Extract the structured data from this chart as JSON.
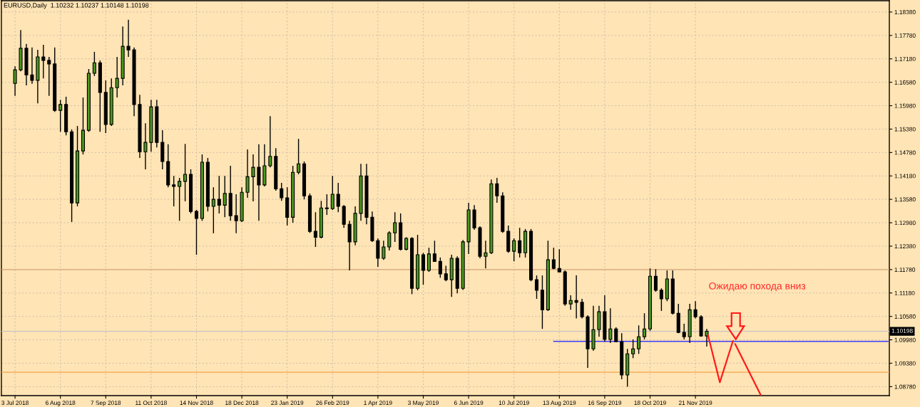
{
  "chart_data": {
    "type": "candlestick",
    "title": "EURUSD,Daily  1.10232 1.10237 1.10148 1.10198",
    "annotations": [
      "Ожидаю похода вниз"
    ],
    "categories": [
      "3 Jul 2018",
      null,
      null,
      null,
      null,
      null,
      null,
      null,
      "6 Aug 2018",
      null,
      null,
      null,
      null,
      null,
      null,
      null,
      "7 Sep 2018",
      null,
      null,
      null,
      null,
      null,
      null,
      null,
      "11 Oct 2018",
      null,
      null,
      null,
      null,
      null,
      null,
      null,
      "14 Nov 2018",
      null,
      null,
      null,
      null,
      null,
      null,
      null,
      "18 Dec 2018",
      null,
      null,
      null,
      null,
      null,
      null,
      null,
      "23 Jan 2019",
      null,
      null,
      null,
      null,
      null,
      null,
      null,
      "26 Feb 2019",
      null,
      null,
      null,
      null,
      null,
      null,
      null,
      "1 Apr 2019",
      null,
      null,
      null,
      null,
      null,
      null,
      null,
      "3 May 2019",
      null,
      null,
      null,
      null,
      null,
      null,
      null,
      "6 Jun 2019",
      null,
      null,
      null,
      null,
      null,
      null,
      null,
      "10 Jul 2019",
      null,
      null,
      null,
      null,
      null,
      null,
      null,
      "13 Aug 2019",
      null,
      null,
      null,
      null,
      null,
      null,
      null,
      "16 Sep 2019",
      null,
      null,
      null,
      null,
      null,
      null,
      null,
      "18 Oct 2019",
      null,
      null,
      null,
      null,
      null,
      null,
      null,
      "21 Nov 2019",
      null,
      null,
      null,
      null,
      null,
      null,
      null,
      null,
      null,
      null,
      null,
      null,
      null,
      null,
      null,
      null,
      null,
      null,
      null,
      null,
      null,
      null,
      null,
      null,
      null,
      null,
      null,
      null,
      null,
      null,
      null,
      null,
      null,
      null
    ],
    "ohlc": [
      [
        1.1655,
        1.1699,
        1.1623,
        1.169
      ],
      [
        1.169,
        1.1792,
        1.1686,
        1.1745
      ],
      [
        1.1745,
        1.1756,
        1.165,
        1.1677
      ],
      [
        1.1677,
        1.1747,
        1.1654,
        1.1663
      ],
      [
        1.1663,
        1.1741,
        1.1604,
        1.1723
      ],
      [
        1.1723,
        1.1754,
        1.1668,
        1.1714
      ],
      [
        1.1714,
        1.1723,
        1.1623,
        1.1705
      ],
      [
        1.1705,
        1.1747,
        1.1582,
        1.1586
      ],
      [
        1.1586,
        1.1613,
        1.1531,
        1.1601
      ],
      [
        1.1601,
        1.1621,
        1.1522,
        1.1531
      ],
      [
        1.1531,
        1.1537,
        1.13,
        1.1349
      ],
      [
        1.1349,
        1.1546,
        1.134,
        1.1482
      ],
      [
        1.1482,
        1.1619,
        1.1473,
        1.1535
      ],
      [
        1.1535,
        1.1692,
        1.1531,
        1.1681
      ],
      [
        1.1681,
        1.1736,
        1.1674,
        1.1708
      ],
      [
        1.1708,
        1.1714,
        1.1531,
        1.1632
      ],
      [
        1.1632,
        1.1663,
        1.1528,
        1.155
      ],
      [
        1.155,
        1.1668,
        1.1546,
        1.1644
      ],
      [
        1.1644,
        1.1723,
        1.1619,
        1.1668
      ],
      [
        1.1668,
        1.1801,
        1.165,
        1.175
      ],
      [
        1.175,
        1.1818,
        1.1723,
        1.1741
      ],
      [
        1.1741,
        1.1747,
        1.1571,
        1.1601
      ],
      [
        1.1601,
        1.1626,
        1.1464,
        1.148
      ],
      [
        1.148,
        1.1553,
        1.1435,
        1.1504
      ],
      [
        1.1504,
        1.1613,
        1.148,
        1.1595
      ],
      [
        1.1595,
        1.1613,
        1.1491,
        1.1504
      ],
      [
        1.1504,
        1.1535,
        1.1435,
        1.1455
      ],
      [
        1.1455,
        1.1499,
        1.1389,
        1.1395
      ],
      [
        1.1395,
        1.1418,
        1.134,
        1.1391
      ],
      [
        1.1391,
        1.1413,
        1.1303,
        1.1404
      ],
      [
        1.1404,
        1.15,
        1.1353,
        1.1422
      ],
      [
        1.1422,
        1.1435,
        1.1322,
        1.1327
      ],
      [
        1.1327,
        1.1331,
        1.1216,
        1.1309
      ],
      [
        1.1309,
        1.1473,
        1.1303,
        1.1453
      ],
      [
        1.1453,
        1.1464,
        1.1327,
        1.134
      ],
      [
        1.134,
        1.1389,
        1.1271,
        1.1358
      ],
      [
        1.1358,
        1.1418,
        1.1322,
        1.1343
      ],
      [
        1.1343,
        1.1418,
        1.1312,
        1.1373
      ],
      [
        1.1373,
        1.1444,
        1.1303,
        1.1316
      ],
      [
        1.1316,
        1.1371,
        1.1271,
        1.1303
      ],
      [
        1.1303,
        1.1389,
        1.13,
        1.1376
      ],
      [
        1.1376,
        1.1486,
        1.1362,
        1.1416
      ],
      [
        1.1416,
        1.1473,
        1.1353,
        1.144
      ],
      [
        1.144,
        1.1499,
        1.1303,
        1.1395
      ],
      [
        1.1395,
        1.1499,
        1.1391,
        1.1444
      ],
      [
        1.1444,
        1.1571,
        1.144,
        1.1468
      ],
      [
        1.1468,
        1.1489,
        1.138,
        1.1385
      ],
      [
        1.1385,
        1.14,
        1.1354,
        1.1362
      ],
      [
        1.1362,
        1.1389,
        1.1291,
        1.1312
      ],
      [
        1.1312,
        1.1444,
        1.1298,
        1.1427
      ],
      [
        1.1427,
        1.1513,
        1.1422,
        1.1449
      ],
      [
        1.1449,
        1.1455,
        1.1358,
        1.1367
      ],
      [
        1.1367,
        1.1373,
        1.1272,
        1.1276
      ],
      [
        1.1276,
        1.1325,
        1.1236,
        1.1261
      ],
      [
        1.1261,
        1.1354,
        1.1258,
        1.1336
      ],
      [
        1.1336,
        1.1371,
        1.1318,
        1.1334
      ],
      [
        1.1334,
        1.1418,
        1.1331,
        1.1371
      ],
      [
        1.1371,
        1.14,
        1.1325,
        1.134
      ],
      [
        1.134,
        1.1343,
        1.1285,
        1.1294
      ],
      [
        1.1294,
        1.1303,
        1.1176,
        1.1249
      ],
      [
        1.1249,
        1.134,
        1.124,
        1.1322
      ],
      [
        1.1322,
        1.1449,
        1.1303,
        1.1418
      ],
      [
        1.1418,
        1.1449,
        1.1294,
        1.1312
      ],
      [
        1.1312,
        1.1327,
        1.1249,
        1.1252
      ],
      [
        1.1252,
        1.1258,
        1.1185,
        1.1207
      ],
      [
        1.1207,
        1.1252,
        1.1203,
        1.1236
      ],
      [
        1.1236,
        1.1276,
        1.1227,
        1.1272
      ],
      [
        1.1272,
        1.1325,
        1.1249,
        1.1298
      ],
      [
        1.1298,
        1.1322,
        1.1227,
        1.123
      ],
      [
        1.123,
        1.1261,
        1.1227,
        1.1258
      ],
      [
        1.1258,
        1.1261,
        1.1115,
        1.113
      ],
      [
        1.113,
        1.1267,
        1.1125,
        1.1216
      ],
      [
        1.1216,
        1.1221,
        1.1139,
        1.1176
      ],
      [
        1.1176,
        1.1234,
        1.1172,
        1.1218
      ],
      [
        1.1218,
        1.1252,
        1.1198,
        1.1199
      ],
      [
        1.1199,
        1.1209,
        1.1157,
        1.1167
      ],
      [
        1.1167,
        1.1188,
        1.1148,
        1.1152
      ],
      [
        1.1152,
        1.1216,
        1.1108,
        1.1207
      ],
      [
        1.1207,
        1.1212,
        1.1117,
        1.113
      ],
      [
        1.113,
        1.1254,
        1.1126,
        1.1249
      ],
      [
        1.1249,
        1.1349,
        1.1218,
        1.1331
      ],
      [
        1.1331,
        1.1343,
        1.128,
        1.1285
      ],
      [
        1.1285,
        1.1289,
        1.1207,
        1.1212
      ],
      [
        1.1212,
        1.1252,
        1.1181,
        1.1221
      ],
      [
        1.1221,
        1.1409,
        1.1218,
        1.1398
      ],
      [
        1.1398,
        1.1413,
        1.1349,
        1.1367
      ],
      [
        1.1367,
        1.1376,
        1.1272,
        1.1276
      ],
      [
        1.1276,
        1.1291,
        1.1221,
        1.1225
      ],
      [
        1.1225,
        1.1258,
        1.1199,
        1.1252
      ],
      [
        1.1252,
        1.1285,
        1.1209,
        1.1221
      ],
      [
        1.1221,
        1.1282,
        1.1209,
        1.1276
      ],
      [
        1.1276,
        1.1282,
        1.1148,
        1.1152
      ],
      [
        1.1152,
        1.1163,
        1.1103,
        1.1125
      ],
      [
        1.1125,
        1.1163,
        1.1026,
        1.1075
      ],
      [
        1.1075,
        1.1252,
        1.1072,
        1.1203
      ],
      [
        1.1203,
        1.1234,
        1.1179,
        1.1181
      ],
      [
        1.1181,
        1.123,
        1.1172,
        1.1172
      ],
      [
        1.1172,
        1.1176,
        1.1085,
        1.109
      ],
      [
        1.109,
        1.1112,
        1.1075,
        1.1099
      ],
      [
        1.1099,
        1.1163,
        1.1053,
        1.1094
      ],
      [
        1.1094,
        1.1103,
        1.1053,
        1.1057
      ],
      [
        1.1057,
        1.1061,
        1.0926,
        1.0975
      ],
      [
        1.0975,
        1.1085,
        1.097,
        1.1024
      ],
      [
        1.1024,
        1.1085,
        1.1006,
        1.107
      ],
      [
        1.107,
        1.1112,
        1.0993,
        1.0999
      ],
      [
        1.0999,
        1.1079,
        1.099,
        1.1026
      ],
      [
        1.1026,
        1.103,
        1.0993,
        1.0993
      ],
      [
        1.0993,
        1.1015,
        1.0897,
        1.0908
      ],
      [
        1.0908,
        1.0975,
        1.0878,
        1.0962
      ],
      [
        1.0962,
        1.0999,
        1.0951,
        1.0975
      ],
      [
        1.0975,
        1.1035,
        1.0962,
        1.1006
      ],
      [
        1.1006,
        1.1066,
        1.0999,
        1.1026
      ],
      [
        1.1026,
        1.1181,
        1.1021,
        1.1161
      ],
      [
        1.1161,
        1.1179,
        1.1121,
        1.1125
      ],
      [
        1.1125,
        1.113,
        1.1072,
        1.1103
      ],
      [
        1.1103,
        1.1176,
        1.1097,
        1.1154
      ],
      [
        1.1154,
        1.1176,
        1.1063,
        1.1066
      ],
      [
        1.1066,
        1.109,
        1.1015,
        1.1017
      ],
      [
        1.1017,
        1.1039,
        1.0999,
        1.1006
      ],
      [
        1.1006,
        1.109,
        1.099,
        1.1075
      ],
      [
        1.1075,
        1.1097,
        1.1053,
        1.1057
      ],
      [
        1.1057,
        1.1061,
        1.1006,
        1.1008
      ],
      [
        1.1008,
        1.1026,
        1.0981,
        1.102
      ],
      null,
      null,
      null,
      null,
      null,
      null,
      null,
      null,
      null,
      null,
      null,
      null,
      null,
      null,
      null,
      null,
      null,
      null,
      null,
      null,
      null,
      null,
      null,
      null,
      null,
      null,
      null,
      null,
      null,
      null,
      null,
      null
    ],
    "colors": [
      "#4a9a1f",
      "#4a9a1f",
      "#000000",
      "#000000",
      "#4a9a1f",
      "#000000",
      "#000000",
      "#000000",
      "#4a9a1f",
      "#000000",
      "#000000",
      "#4a9a1f",
      "#4a9a1f",
      "#4a9a1f",
      "#4a9a1f",
      "#000000",
      "#000000",
      "#4a9a1f",
      "#4a9a1f",
      "#4a9a1f",
      "#000000",
      "#000000",
      "#000000",
      "#4a9a1f",
      "#4a9a1f",
      "#000000",
      "#000000",
      "#000000",
      "#000000",
      "#4a9a1f",
      "#4a9a1f",
      "#000000",
      "#000000",
      "#4a9a1f",
      "#000000",
      "#4a9a1f",
      "#000000",
      "#4a9a1f",
      "#000000",
      "#000000",
      "#4a9a1f",
      "#4a9a1f",
      "#4a9a1f",
      "#000000",
      "#4a9a1f",
      "#4a9a1f",
      "#000000",
      "#000000",
      "#000000",
      "#4a9a1f",
      "#4a9a1f",
      "#000000",
      "#000000",
      "#000000",
      "#4a9a1f",
      "#000000",
      "#4a9a1f",
      "#000000",
      "#000000",
      "#000000",
      "#4a9a1f",
      "#4a9a1f",
      "#000000",
      "#000000",
      "#000000",
      "#4a9a1f",
      "#4a9a1f",
      "#4a9a1f",
      "#000000",
      "#4a9a1f",
      "#000000",
      "#4a9a1f",
      "#000000",
      "#4a9a1f",
      "#000000",
      "#000000",
      "#000000",
      "#4a9a1f",
      "#000000",
      "#4a9a1f",
      "#4a9a1f",
      "#000000",
      "#000000",
      "#4a9a1f",
      "#4a9a1f",
      "#000000",
      "#000000",
      "#000000",
      "#4a9a1f",
      "#000000",
      "#4a9a1f",
      "#000000",
      "#000000",
      "#000000",
      "#4a9a1f",
      "#000000",
      "#000000",
      "#000000",
      "#4a9a1f",
      "#000000",
      "#000000",
      "#000000",
      "#4a9a1f",
      "#4a9a1f",
      "#000000",
      "#4a9a1f",
      "#000000",
      "#000000",
      "#4a9a1f",
      "#4a9a1f",
      "#4a9a1f",
      "#4a9a1f",
      "#4a9a1f",
      "#000000",
      "#000000",
      "#4a9a1f",
      "#000000",
      "#000000",
      "#000000",
      "#4a9a1f",
      "#000000",
      "#000000",
      "#4a9a1f",
      null,
      null,
      null,
      null,
      null,
      null,
      null,
      null,
      null,
      null,
      null,
      null,
      null,
      null,
      null,
      null,
      null,
      null,
      null,
      null,
      null,
      null,
      null,
      null,
      null,
      null,
      null,
      null,
      null,
      null,
      null,
      null
    ],
    "color": "#000000",
    "series": [
      {
        "type": "line",
        "color": "#3b3bff",
        "values": [
          null,
          null,
          null,
          null,
          null,
          null,
          null,
          null,
          null,
          null,
          null,
          null,
          null,
          null,
          null,
          null,
          null,
          null,
          null,
          null,
          null,
          null,
          null,
          null,
          null,
          null,
          null,
          null,
          null,
          null,
          null,
          null,
          null,
          null,
          null,
          null,
          null,
          null,
          null,
          null,
          null,
          null,
          null,
          null,
          null,
          null,
          null,
          null,
          null,
          null,
          null,
          null,
          null,
          null,
          null,
          null,
          null,
          null,
          null,
          null,
          null,
          null,
          null,
          null,
          null,
          null,
          null,
          null,
          null,
          null,
          null,
          null,
          null,
          null,
          null,
          null,
          null,
          null,
          null,
          null,
          null,
          null,
          null,
          null,
          null,
          null,
          null,
          null,
          null,
          null,
          null,
          null,
          null,
          null,
          null,
          1.0994,
          1.0994,
          1.0994,
          1.0994,
          1.0994,
          1.0994,
          1.0994,
          1.0994,
          1.0994,
          1.0994,
          1.0994,
          1.0994,
          1.0994,
          1.0994,
          1.0994,
          1.0994,
          1.0994,
          1.0994,
          1.0994,
          1.0994,
          1.0994,
          1.0994,
          1.0994,
          1.0994,
          1.0994,
          1.0994,
          1.0994,
          1.0994,
          1.0994,
          1.0994,
          1.0994,
          1.0994,
          1.0994,
          1.0994,
          1.0994,
          1.0994,
          1.0994,
          1.0994,
          1.0994,
          1.0994,
          1.0994,
          1.0994,
          1.0994,
          1.0994,
          1.0994,
          1.0994,
          1.0994,
          1.0994,
          1.0994,
          1.0994,
          1.0994,
          1.0994,
          1.0994,
          1.0994,
          1.0994,
          1.0994,
          1.0994,
          1.0994,
          1.0994,
          1.0994
        ]
      }
    ],
    "ylim": [
      1.0855,
      1.1867
    ],
    "yticks": [
      {
        "value": 1.0878,
        "label": "1.08780"
      },
      {
        "value": 1.0938,
        "label": "1.09380"
      },
      {
        "value": 1.0998,
        "label": "1.09980"
      },
      {
        "value": 1.1058,
        "label": "1.10580"
      },
      {
        "value": 1.1118,
        "label": "1.11180"
      },
      {
        "value": 1.1178,
        "label": "1.11780"
      },
      {
        "value": 1.1238,
        "label": "1.12380"
      },
      {
        "value": 1.1298,
        "label": "1.12980"
      },
      {
        "value": 1.1358,
        "label": "1.13580"
      },
      {
        "value": 1.1418,
        "label": "1.14180"
      },
      {
        "value": 1.1478,
        "label": "1.14780"
      },
      {
        "value": 1.1538,
        "label": "1.15380"
      },
      {
        "value": 1.1598,
        "label": "1.15980"
      },
      {
        "value": 1.1658,
        "label": "1.16580"
      },
      {
        "value": 1.1718,
        "label": "1.17180"
      },
      {
        "value": 1.1778,
        "label": "1.17780"
      },
      {
        "value": 1.1838,
        "label": "1.18380"
      }
    ],
    "ref_lines": [
      {
        "axis": "y",
        "value": 1.1178,
        "color": "#d6a877"
      },
      {
        "axis": "y",
        "value": 1.0915,
        "color": "#f7a34b"
      },
      {
        "axis": "y",
        "value": 1.10198,
        "label": "1.10198",
        "color": "#c4c4c4"
      }
    ],
    "grid": true
  }
}
